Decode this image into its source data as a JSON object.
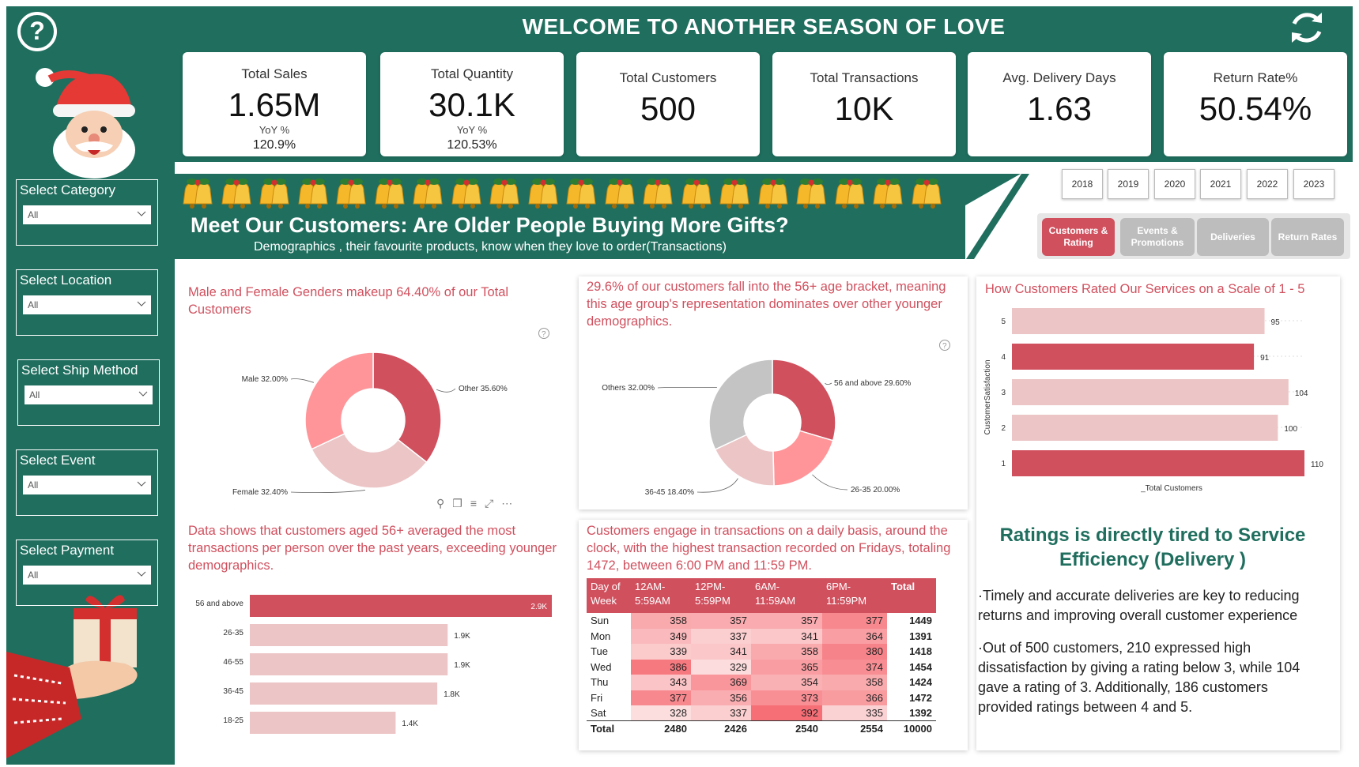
{
  "header": {
    "title": "WELCOME TO ANOTHER SEASON OF LOVE"
  },
  "kpis": [
    {
      "label": "Total Sales",
      "value": "1.65M",
      "yoy_label": "YoY %",
      "yoy_value": "120.9%"
    },
    {
      "label": "Total Quantity",
      "value": "30.1K",
      "yoy_label": "YoY %",
      "yoy_value": "120.53%"
    },
    {
      "label": "Total Customers",
      "value": "500"
    },
    {
      "label": "Total Transactions",
      "value": "10K"
    },
    {
      "label": "Avg. Delivery Days",
      "value": "1.63"
    },
    {
      "label": "Return Rate%",
      "value": "50.54%"
    }
  ],
  "filters": [
    {
      "label": "Select Category",
      "value": "All"
    },
    {
      "label": "Select Location",
      "value": "All"
    },
    {
      "label": "Select Ship Method",
      "value": "All"
    },
    {
      "label": "Select Event",
      "value": "All"
    },
    {
      "label": "Select Payment",
      "value": "All"
    }
  ],
  "banner": {
    "heading": "Meet Our Customers: Are Older People Buying More Gifts?",
    "subheading": "Demographics , their favourite products, know when they love to order(Transactions)"
  },
  "years": [
    "2018",
    "2019",
    "2020",
    "2021",
    "2022",
    "2023"
  ],
  "nav": [
    {
      "label": "Customers & Rating",
      "active": true
    },
    {
      "label": "Events & Promotions",
      "active": false
    },
    {
      "label": "Deliveries",
      "active": false
    },
    {
      "label": "Return Rates",
      "active": false
    }
  ],
  "colors": {
    "green": "#1f6e5e",
    "red": "#d0505e",
    "pink": "#ff9599",
    "light_pink": "#ecc5c6",
    "gray": "#c4c4c4"
  },
  "cards": {
    "gender_title": "Male and Female Genders makeup 64.40% of our Total Customers",
    "age_title": "29.6% of our customers fall into the 56+ age bracket, meaning this age group's representation dominates over other younger demographics.",
    "rating_title": "How Customers Rated Our Services on a Scale of 1 - 5",
    "age_tx_title": "Data shows that customers aged 56+ averaged the most transactions per person over the past years, exceeding younger demographics.",
    "heatmap_title": "Customers engage in transactions on a daily basis, around the clock, with the highest transaction recorded on Fridays, totaling 1472, between 6:00 PM and 11:59 PM."
  },
  "insight": {
    "heading": "Ratings is directly tired to Service Efficiency (Delivery )",
    "bullets": [
      "Timely and accurate deliveries are key to reducing returns and improving overall customer experience",
      "Out of 500 customers, 210 expressed high dissatisfaction by giving a rating below 3, while 104 gave a rating of 3. Additionally, 186 customers provided ratings between 4 and 5."
    ]
  },
  "chart_data": [
    {
      "type": "pie",
      "categories": [
        "Other",
        "Female",
        "Male"
      ],
      "values": [
        35.6,
        32.4,
        32.0
      ],
      "labels": [
        "Other 35.60%",
        "Female 32.40%",
        "Male 32.00%"
      ]
    },
    {
      "type": "pie",
      "categories": [
        "56 and above",
        "26-35",
        "36-45",
        "Others"
      ],
      "values": [
        29.6,
        20.0,
        18.4,
        32.0
      ],
      "labels": [
        "56 and above 29.60%",
        "26-35 20.00%",
        "36-45 18.40%",
        "Others 32.00%"
      ]
    },
    {
      "type": "bar",
      "orientation": "horizontal",
      "categories": [
        "5",
        "4",
        "3",
        "2",
        "1"
      ],
      "values": [
        95,
        91,
        104,
        100,
        110
      ],
      "xlabel": "_Total Customers",
      "ylabel": "CustomerSatisfaction",
      "xlim": [
        0,
        110
      ]
    },
    {
      "type": "bar",
      "orientation": "horizontal",
      "categories": [
        "56 and above",
        "26-35",
        "46-55",
        "36-45",
        "18-25"
      ],
      "values": [
        2900,
        1900,
        1900,
        1800,
        1400
      ],
      "value_labels": [
        "2.9K",
        "1.9K",
        "1.9K",
        "1.8K",
        "1.4K"
      ],
      "xlim": [
        0,
        2900
      ]
    },
    {
      "type": "heatmap",
      "columns": [
        "Day of Week",
        "12AM-5:59AM",
        "12PM-5:59PM",
        "6AM-11:59AM",
        "6PM-11:59PM",
        "Total"
      ],
      "rows": [
        {
          "day": "Sun",
          "values": [
            358,
            357,
            357,
            377
          ],
          "total": 1449
        },
        {
          "day": "Mon",
          "values": [
            349,
            337,
            341,
            364
          ],
          "total": 1391
        },
        {
          "day": "Tue",
          "values": [
            339,
            341,
            358,
            380
          ],
          "total": 1418
        },
        {
          "day": "Wed",
          "values": [
            386,
            329,
            365,
            374
          ],
          "total": 1454
        },
        {
          "day": "Thu",
          "values": [
            343,
            369,
            354,
            358
          ],
          "total": 1424
        },
        {
          "day": "Fri",
          "values": [
            377,
            356,
            373,
            366
          ],
          "total": 1472
        },
        {
          "day": "Sat",
          "values": [
            328,
            337,
            392,
            335
          ],
          "total": 1392
        }
      ],
      "total_row": {
        "label": "Total",
        "values": [
          2480,
          2426,
          2540,
          2554
        ],
        "total": 10000
      }
    }
  ]
}
